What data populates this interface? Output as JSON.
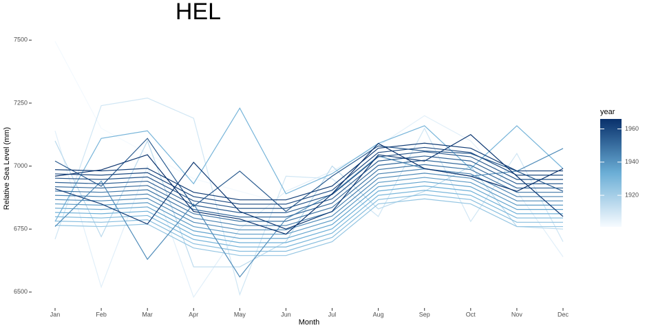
{
  "chart_data": {
    "type": "line",
    "title": "HEL",
    "x_label": "Month",
    "y_label": "Relative Sea Level (mm)",
    "categories": [
      "Jan",
      "Feb",
      "Mar",
      "Apr",
      "May",
      "Jun",
      "Jul",
      "Aug",
      "Sep",
      "Oct",
      "Nov",
      "Dec"
    ],
    "ylim": [
      6445,
      7550
    ],
    "yticks": [
      6500,
      6750,
      7000,
      7250,
      7500
    ],
    "grid": false,
    "colorbar": {
      "title": "year",
      "lim": [
        1901,
        1966
      ],
      "ticks": [
        1920,
        1940,
        1960
      ],
      "colors": [
        "#f7fbff",
        "#6baed6",
        "#08306b"
      ]
    },
    "series": [
      {
        "year": 1902,
        "values": [
          7495,
          7150,
          7050,
          6950,
          6900,
          6850,
          6900,
          7000,
          7050,
          7000,
          6950,
          6900
        ]
      },
      {
        "year": 1906,
        "values": [
          7140,
          6520,
          7000,
          6480,
          6750,
          6900,
          6980,
          7080,
          7200,
          7100,
          6900,
          6640
        ]
      },
      {
        "year": 1910,
        "values": [
          6710,
          7240,
          7270,
          7190,
          6490,
          6960,
          6950,
          6800,
          7150,
          6780,
          7050,
          6700
        ]
      },
      {
        "year": 1915,
        "values": [
          7100,
          6720,
          7100,
          6600,
          6600,
          6700,
          7000,
          6830,
          6900,
          7000,
          6760,
          6750
        ]
      },
      {
        "year": 1924,
        "values": [
          6765,
          6760,
          6770,
          6675,
          6645,
          6645,
          6700,
          6850,
          6870,
          6850,
          6760,
          6760
        ]
      },
      {
        "year": 1927,
        "values": [
          6782,
          6777,
          6787,
          6692,
          6662,
          6662,
          6717,
          6867,
          6887,
          6867,
          6777,
          6777
        ]
      },
      {
        "year": 1930,
        "values": [
          6799,
          6794,
          6804,
          6709,
          6679,
          6679,
          6734,
          6884,
          6904,
          6884,
          6794,
          6794
        ]
      },
      {
        "year": 1931,
        "values": [
          6780,
          7110,
          7140,
          6930,
          7230,
          6890,
          6970,
          7090,
          7160,
          6990,
          7160,
          6990
        ]
      },
      {
        "year": 1933,
        "values": [
          6816,
          6811,
          6821,
          6726,
          6696,
          6696,
          6751,
          6901,
          6921,
          6901,
          6811,
          6811
        ]
      },
      {
        "year": 1936,
        "values": [
          6833,
          6828,
          6838,
          6743,
          6713,
          6713,
          6768,
          6918,
          6938,
          6918,
          6828,
          6828
        ]
      },
      {
        "year": 1939,
        "values": [
          6850,
          6845,
          6855,
          6760,
          6730,
          6730,
          6785,
          6935,
          6955,
          6935,
          6845,
          6845
        ]
      },
      {
        "year": 1942,
        "values": [
          6760,
          6940,
          6630,
          6850,
          6560,
          6790,
          6890,
          7040,
          6990,
          6960,
          6980,
          7070
        ]
      },
      {
        "year": 1943,
        "values": [
          6867,
          6862,
          6872,
          6777,
          6747,
          6747,
          6802,
          6952,
          6972,
          6952,
          6862,
          6862
        ]
      },
      {
        "year": 1945,
        "values": [
          6884,
          6879,
          6889,
          6794,
          6764,
          6764,
          6819,
          6969,
          6989,
          6969,
          6879,
          6879
        ]
      },
      {
        "year": 1948,
        "values": [
          6901,
          6896,
          6906,
          6811,
          6781,
          6781,
          6836,
          6986,
          7006,
          6986,
          6896,
          6896
        ]
      },
      {
        "year": 1951,
        "values": [
          6918,
          6913,
          6923,
          6828,
          6798,
          6798,
          6853,
          7003,
          7023,
          7003,
          6913,
          6913
        ]
      },
      {
        "year": 1954,
        "values": [
          6935,
          6930,
          6940,
          6845,
          6815,
          6815,
          6870,
          7020,
          7040,
          7020,
          6930,
          6930
        ]
      },
      {
        "year": 1955,
        "values": [
          7020,
          6920,
          7110,
          6840,
          6980,
          6820,
          6960,
          7080,
          7060,
          7050,
          6980,
          6900
        ]
      },
      {
        "year": 1957,
        "values": [
          6952,
          6947,
          6957,
          6862,
          6832,
          6832,
          6887,
          7037,
          7057,
          7037,
          6947,
          6947
        ]
      },
      {
        "year": 1960,
        "values": [
          6969,
          6964,
          6974,
          6879,
          6849,
          6849,
          6904,
          7054,
          7074,
          7054,
          6964,
          6964
        ]
      },
      {
        "year": 1963,
        "values": [
          6986,
          6981,
          6991,
          6896,
          6866,
          6866,
          6921,
          7071,
          7091,
          7071,
          6981,
          6981
        ]
      },
      {
        "year": 1964,
        "values": [
          6910,
          6850,
          6770,
          7015,
          6820,
          6750,
          6820,
          7045,
          7020,
          7125,
          6960,
          6800
        ]
      },
      {
        "year": 1966,
        "values": [
          6960,
          6985,
          7045,
          6820,
          6790,
          6730,
          6890,
          7090,
          6990,
          6960,
          6900,
          6990
        ]
      }
    ]
  }
}
